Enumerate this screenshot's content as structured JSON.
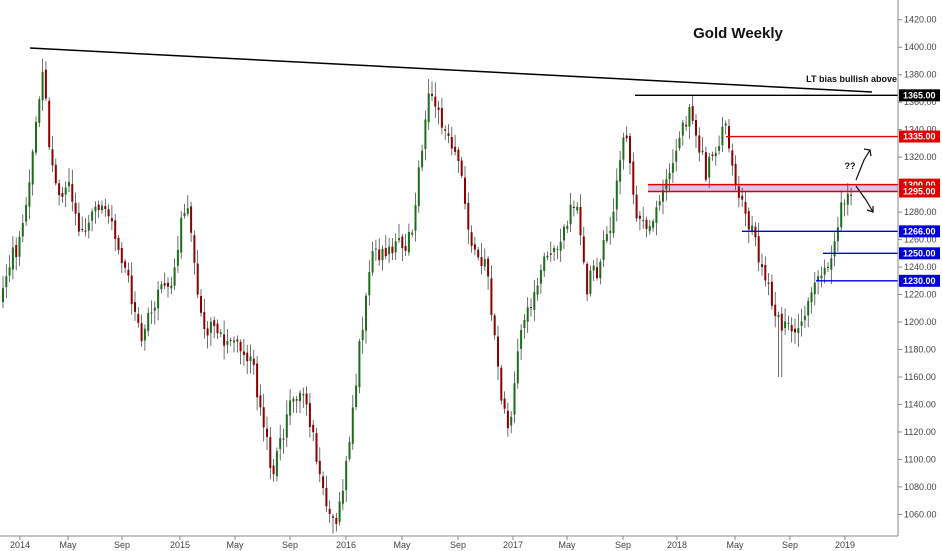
{
  "chart_data": {
    "type": "candlestick",
    "title": "Gold Weekly",
    "timeframe": "weekly",
    "ylim": [
      1045,
      1430
    ],
    "y_ticks": [
      1060,
      1080,
      1100,
      1120,
      1140,
      1160,
      1180,
      1200,
      1220,
      1240,
      1260,
      1280,
      1300,
      1320,
      1340,
      1360,
      1380,
      1400,
      1420
    ],
    "x_ticks": [
      "2014",
      "May",
      "Sep",
      "2015",
      "May",
      "Sep",
      "2016",
      "May",
      "Sep",
      "2017",
      "May",
      "Sep",
      "2018",
      "May",
      "Sep",
      "2019"
    ],
    "colors": {
      "up": "#1a6e1a",
      "down": "#8b0000",
      "resistance": "#e00000",
      "support": "#0000dd",
      "trend": "#000000",
      "zone": "#cdb3e6"
    },
    "anchor_prices": [
      [
        "2014",
        1225
      ],
      [
        "May",
        1295
      ],
      [
        "Sep",
        1235
      ],
      [
        "2015",
        1185
      ],
      [
        "May",
        1190
      ],
      [
        "Sep",
        1130
      ],
      [
        "2016",
        1065
      ],
      [
        "May",
        1280
      ],
      [
        "Sep",
        1325
      ],
      [
        "2017",
        1155
      ],
      [
        "May",
        1255
      ],
      [
        "Sep",
        1325
      ],
      [
        "2018",
        1320
      ],
      [
        "May",
        1295
      ],
      [
        "Sep",
        1198
      ],
      [
        "2019",
        1285
      ]
    ],
    "key_candles": [
      {
        "label": "Mar 2014 high",
        "high": 1388
      },
      {
        "label": "Dec 2015 low",
        "low": 1046
      },
      {
        "label": "Jul 2016 high",
        "high": 1375
      },
      {
        "label": "Dec 2016 low",
        "low": 1123
      },
      {
        "label": "Aug 2018 low",
        "low": 1160
      },
      {
        "label": "latest close",
        "close": 1292
      }
    ],
    "levels": [
      {
        "price": 1365,
        "label": "1365.00",
        "kind": "trend"
      },
      {
        "price": 1335,
        "label": "1335.00",
        "kind": "resistance"
      },
      {
        "price": 1300,
        "label": "1300.00",
        "kind": "resistance"
      },
      {
        "price": 1295,
        "label": "1295.00",
        "kind": "resistance"
      },
      {
        "price": 1266,
        "label": "1266.00",
        "kind": "support"
      },
      {
        "price": 1250,
        "label": "1250.00",
        "kind": "support"
      },
      {
        "price": 1230,
        "label": "1230.00",
        "kind": "support"
      }
    ],
    "annotations": {
      "bias": "LT bias bullish above",
      "question": "??"
    }
  }
}
